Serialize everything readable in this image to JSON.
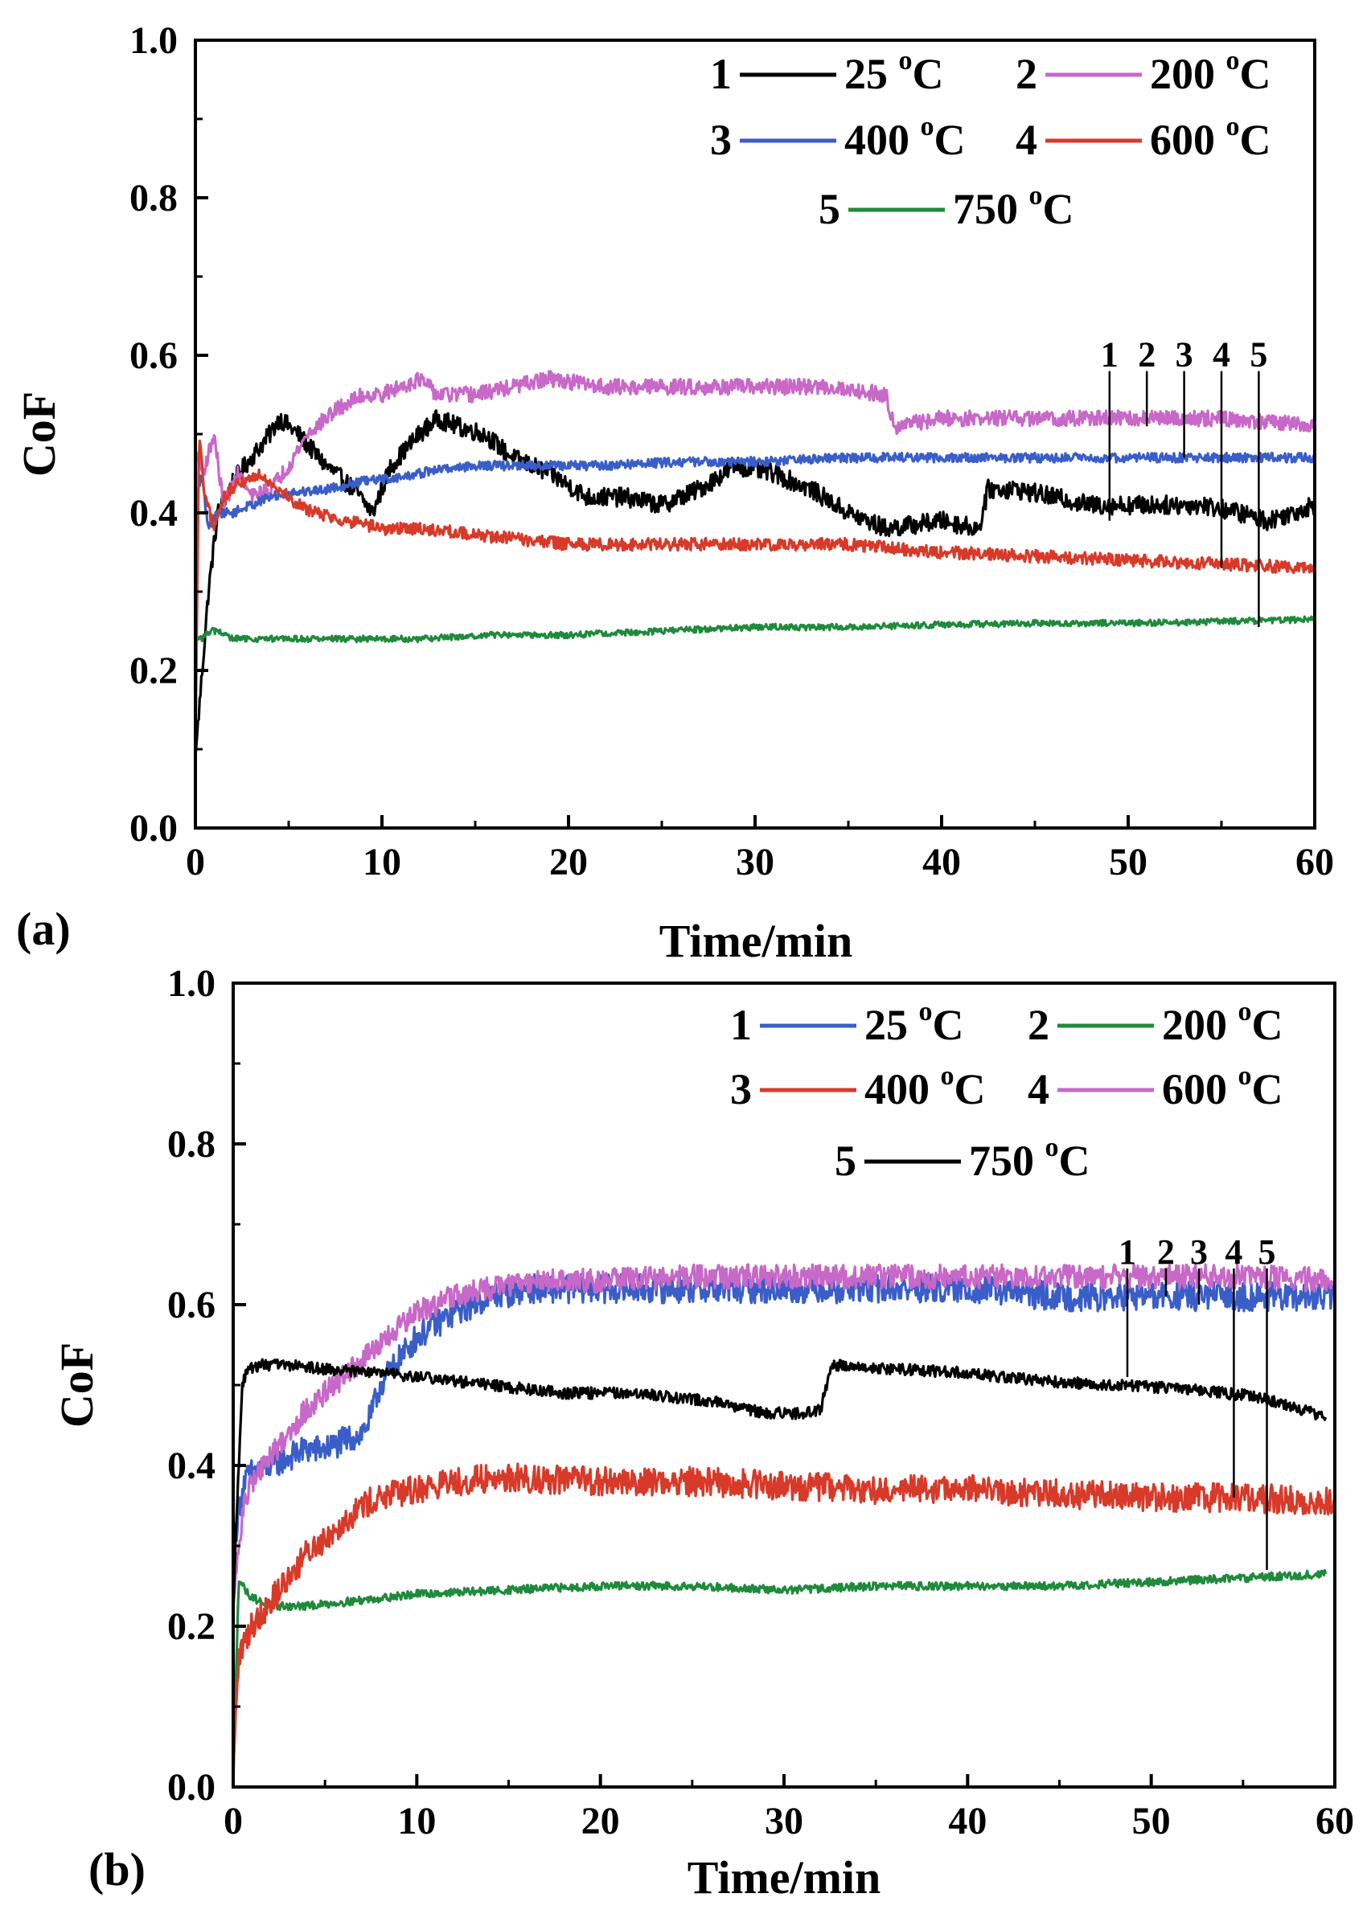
{
  "chart_data": [
    {
      "type": "line",
      "panel_label": "(a)",
      "xlabel": "Time/min",
      "ylabel": "CoF",
      "xlim": [
        0,
        60
      ],
      "ylim": [
        0,
        1.0
      ],
      "xticks": [
        "0",
        "10",
        "20",
        "30",
        "40",
        "50",
        "60"
      ],
      "yticks": [
        "0.0",
        "0.2",
        "0.4",
        "0.6",
        "0.8",
        "1.0"
      ],
      "legend": [
        {
          "num": "1",
          "temp": "25",
          "unit": "C",
          "color": "#000000"
        },
        {
          "num": "2",
          "temp": "200",
          "unit": "C",
          "color": "#c868c8"
        },
        {
          "num": "3",
          "temp": "400",
          "unit": "C",
          "color": "#3a5ec8"
        },
        {
          "num": "4",
          "temp": "600",
          "unit": "C",
          "color": "#d83a2a"
        },
        {
          "num": "5",
          "temp": "750",
          "unit": "C",
          "color": "#1f8a3c"
        }
      ],
      "series": [
        {
          "name": "1",
          "color": "#000000",
          "noise": 0.012,
          "x": [
            0,
            0.3,
            0.7,
            1.2,
            2,
            3,
            4,
            4.5,
            5.5,
            7,
            8.5,
            9.5,
            10.5,
            12,
            13,
            14,
            15.5,
            17,
            19,
            21,
            23,
            25,
            27,
            29,
            31,
            33,
            35,
            36,
            37,
            40,
            42,
            42.5,
            44,
            46,
            48,
            50,
            52,
            54,
            56,
            57.5,
            60
          ],
          "values": [
            0.09,
            0.18,
            0.3,
            0.4,
            0.44,
            0.47,
            0.5,
            0.52,
            0.5,
            0.46,
            0.43,
            0.4,
            0.46,
            0.5,
            0.52,
            0.51,
            0.5,
            0.47,
            0.45,
            0.42,
            0.42,
            0.41,
            0.43,
            0.46,
            0.45,
            0.43,
            0.4,
            0.39,
            0.38,
            0.39,
            0.38,
            0.43,
            0.43,
            0.42,
            0.41,
            0.41,
            0.41,
            0.41,
            0.4,
            0.39,
            0.41
          ]
        },
        {
          "name": "2",
          "color": "#c868c8",
          "noise": 0.01,
          "x": [
            0,
            0.4,
            1,
            1.5,
            2.3,
            3,
            4,
            5,
            6,
            7.5,
            9,
            10,
            12,
            13,
            15,
            17,
            19,
            22,
            25,
            28,
            31,
            34,
            37,
            37.5,
            40,
            45,
            50,
            55,
            60
          ],
          "values": [
            0.48,
            0.45,
            0.5,
            0.41,
            0.45,
            0.42,
            0.43,
            0.46,
            0.5,
            0.53,
            0.55,
            0.55,
            0.57,
            0.55,
            0.55,
            0.56,
            0.57,
            0.56,
            0.56,
            0.56,
            0.56,
            0.56,
            0.55,
            0.51,
            0.52,
            0.52,
            0.52,
            0.52,
            0.51
          ]
        },
        {
          "name": "3",
          "color": "#3a5ec8",
          "noise": 0.006,
          "x": [
            0,
            0.3,
            0.7,
            1.2,
            2,
            3,
            4,
            5,
            7,
            9,
            11,
            13,
            15,
            18,
            22,
            26,
            30,
            35,
            40,
            45,
            50,
            55,
            60
          ],
          "values": [
            0.4,
            0.45,
            0.38,
            0.4,
            0.4,
            0.41,
            0.42,
            0.425,
            0.43,
            0.44,
            0.445,
            0.455,
            0.46,
            0.46,
            0.46,
            0.465,
            0.465,
            0.47,
            0.47,
            0.47,
            0.47,
            0.47,
            0.47
          ]
        },
        {
          "name": "4",
          "color": "#d83a2a",
          "noise": 0.008,
          "x": [
            0,
            0.2,
            0.5,
            1,
            1.5,
            2.5,
            3.5,
            4.5,
            5.5,
            6.5,
            8,
            10,
            12,
            14,
            16,
            18,
            20,
            25,
            30,
            35,
            40,
            45,
            50,
            55,
            60
          ],
          "values": [
            0.1,
            0.5,
            0.42,
            0.38,
            0.42,
            0.44,
            0.45,
            0.43,
            0.41,
            0.4,
            0.39,
            0.38,
            0.38,
            0.375,
            0.37,
            0.365,
            0.36,
            0.36,
            0.36,
            0.36,
            0.35,
            0.345,
            0.34,
            0.335,
            0.33
          ]
        },
        {
          "name": "5",
          "color": "#1f8a3c",
          "noise": 0.004,
          "x": [
            0,
            0.3,
            0.8,
            1.2,
            2,
            4,
            8,
            12,
            16,
            20,
            25,
            30,
            35,
            40,
            45,
            50,
            55,
            60
          ],
          "values": [
            0.24,
            0.24,
            0.25,
            0.25,
            0.24,
            0.24,
            0.24,
            0.24,
            0.245,
            0.245,
            0.25,
            0.255,
            0.255,
            0.258,
            0.26,
            0.26,
            0.262,
            0.265
          ]
        }
      ],
      "marker_labels": [
        "1",
        "2",
        "3",
        "4",
        "5"
      ]
    },
    {
      "type": "line",
      "panel_label": "(b)",
      "xlabel": "Time/min",
      "ylabel": "CoF",
      "xlim": [
        0,
        60
      ],
      "ylim": [
        0,
        1.0
      ],
      "xticks": [
        "0",
        "10",
        "20",
        "30",
        "40",
        "50",
        "60"
      ],
      "yticks": [
        "0.0",
        "0.2",
        "0.4",
        "0.6",
        "0.8",
        "1.0"
      ],
      "legend": [
        {
          "num": "1",
          "temp": "25",
          "unit": "C",
          "color": "#3a5ec8"
        },
        {
          "num": "2",
          "temp": "200",
          "unit": "C",
          "color": "#1f8a3c"
        },
        {
          "num": "3",
          "temp": "400",
          "unit": "C",
          "color": "#d83a2a"
        },
        {
          "num": "4",
          "temp": "600",
          "unit": "C",
          "color": "#c868c8"
        },
        {
          "num": "5",
          "temp": "750",
          "unit": "C",
          "color": "#000000"
        }
      ],
      "series": [
        {
          "name": "1",
          "color": "#3a5ec8",
          "noise": 0.018,
          "x": [
            0,
            0.3,
            0.6,
            1,
            2,
            3,
            4,
            5,
            6,
            7,
            7.5,
            8,
            9,
            10,
            12,
            14,
            16,
            18,
            20,
            25,
            30,
            35,
            40,
            45,
            50,
            55,
            60
          ],
          "values": [
            0.3,
            0.34,
            0.38,
            0.39,
            0.4,
            0.41,
            0.42,
            0.42,
            0.43,
            0.44,
            0.46,
            0.5,
            0.53,
            0.56,
            0.59,
            0.61,
            0.62,
            0.62,
            0.62,
            0.62,
            0.62,
            0.62,
            0.62,
            0.61,
            0.61,
            0.61,
            0.61
          ]
        },
        {
          "name": "2",
          "color": "#1f8a3c",
          "noise": 0.005,
          "x": [
            0,
            0.3,
            0.8,
            1.5,
            2.5,
            4,
            6,
            8,
            10,
            15,
            20,
            25,
            30,
            35,
            40,
            45,
            50,
            55,
            59.5
          ],
          "values": [
            0.0,
            0.26,
            0.24,
            0.23,
            0.225,
            0.225,
            0.23,
            0.235,
            0.24,
            0.245,
            0.25,
            0.25,
            0.245,
            0.25,
            0.25,
            0.25,
            0.255,
            0.26,
            0.265
          ]
        },
        {
          "name": "3",
          "color": "#d83a2a",
          "noise": 0.018,
          "x": [
            0,
            0.3,
            0.6,
            1,
            2,
            3,
            4,
            5,
            6,
            7,
            8,
            10,
            12,
            15,
            20,
            25,
            30,
            35,
            40,
            45,
            50,
            55,
            60
          ],
          "values": [
            0.02,
            0.16,
            0.18,
            0.2,
            0.23,
            0.26,
            0.29,
            0.31,
            0.33,
            0.35,
            0.36,
            0.37,
            0.38,
            0.385,
            0.38,
            0.38,
            0.375,
            0.37,
            0.37,
            0.365,
            0.36,
            0.36,
            0.355
          ]
        },
        {
          "name": "4",
          "color": "#c868c8",
          "noise": 0.015,
          "x": [
            0,
            0.3,
            0.6,
            1,
            2,
            3,
            4,
            5,
            6,
            7,
            8,
            9,
            10,
            12,
            14,
            16,
            20,
            25,
            30,
            35,
            40,
            45,
            50,
            55,
            60
          ],
          "values": [
            0.22,
            0.3,
            0.35,
            0.38,
            0.41,
            0.44,
            0.47,
            0.49,
            0.51,
            0.53,
            0.55,
            0.57,
            0.59,
            0.61,
            0.62,
            0.63,
            0.63,
            0.635,
            0.635,
            0.635,
            0.635,
            0.635,
            0.635,
            0.635,
            0.63
          ]
        },
        {
          "name": "5",
          "color": "#000000",
          "noise": 0.007,
          "x": [
            0,
            0.2,
            0.5,
            0.8,
            1.5,
            3,
            5,
            8,
            10,
            14,
            18,
            22,
            26,
            29,
            31,
            32,
            32.6,
            33,
            36,
            40,
            44,
            48,
            52,
            56,
            59.5
          ],
          "values": [
            0.22,
            0.35,
            0.5,
            0.52,
            0.525,
            0.525,
            0.52,
            0.515,
            0.51,
            0.5,
            0.49,
            0.49,
            0.48,
            0.465,
            0.465,
            0.47,
            0.525,
            0.525,
            0.52,
            0.515,
            0.505,
            0.5,
            0.495,
            0.485,
            0.46
          ]
        }
      ],
      "marker_labels": [
        "1",
        "2",
        "3",
        "4",
        "5"
      ]
    }
  ]
}
